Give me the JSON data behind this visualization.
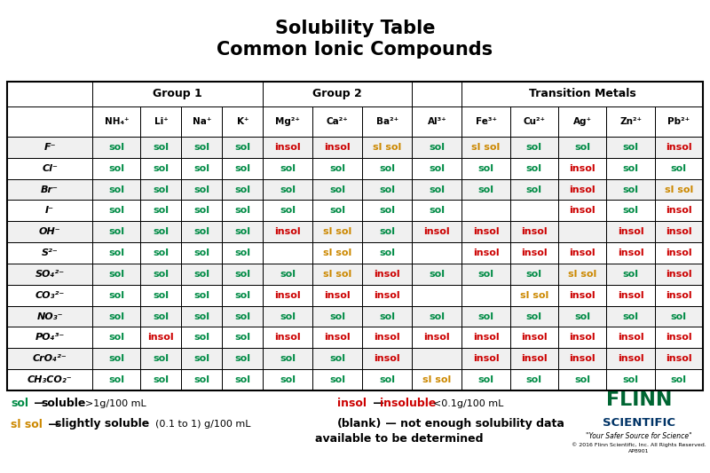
{
  "title_line1": "Solubility Table",
  "title_line2": "Common Ionic Compounds",
  "group_headers": [
    "Group 1",
    "Group 2",
    "Transition Metals"
  ],
  "col_headers": [
    "",
    "NH₄⁺",
    "Li⁺",
    "Na⁺",
    "K⁺",
    "Mg²⁺",
    "Ca²⁺",
    "Ba²⁺",
    "Al³⁺",
    "Fe³⁺",
    "Cu²⁺",
    "Ag⁺",
    "Zn²⁺",
    "Pb²⁺"
  ],
  "row_headers": [
    "F⁻",
    "Cl⁻",
    "Br⁻",
    "I⁻",
    "OH⁻",
    "S²⁻",
    "SO₄²⁻",
    "CO₃²⁻",
    "NO₃⁻",
    "PO₄³⁻",
    "CrO₄²⁻",
    "CH₃CO₂⁻"
  ],
  "table_data": [
    [
      "sol",
      "sol",
      "sol",
      "sol",
      "insol",
      "insol",
      "sl sol",
      "sol",
      "sl sol",
      "sol",
      "sol",
      "sol",
      "insol"
    ],
    [
      "sol",
      "sol",
      "sol",
      "sol",
      "sol",
      "sol",
      "sol",
      "sol",
      "sol",
      "sol",
      "insol",
      "sol",
      "sol"
    ],
    [
      "sol",
      "sol",
      "sol",
      "sol",
      "sol",
      "sol",
      "sol",
      "sol",
      "sol",
      "sol",
      "insol",
      "sol",
      "sl sol"
    ],
    [
      "sol",
      "sol",
      "sol",
      "sol",
      "sol",
      "sol",
      "sol",
      "sol",
      "",
      "",
      "insol",
      "sol",
      "insol"
    ],
    [
      "sol",
      "sol",
      "sol",
      "sol",
      "insol",
      "sl sol",
      "sol",
      "insol",
      "insol",
      "insol",
      "",
      "insol",
      "insol"
    ],
    [
      "sol",
      "sol",
      "sol",
      "sol",
      "",
      "sl sol",
      "sol",
      "",
      "insol",
      "insol",
      "insol",
      "insol",
      "insol"
    ],
    [
      "sol",
      "sol",
      "sol",
      "sol",
      "sol",
      "sl sol",
      "insol",
      "sol",
      "sol",
      "sol",
      "sl sol",
      "sol",
      "insol"
    ],
    [
      "sol",
      "sol",
      "sol",
      "sol",
      "insol",
      "insol",
      "insol",
      "",
      "",
      "sl sol",
      "insol",
      "insol",
      "insol"
    ],
    [
      "sol",
      "sol",
      "sol",
      "sol",
      "sol",
      "sol",
      "sol",
      "sol",
      "sol",
      "sol",
      "sol",
      "sol",
      "sol"
    ],
    [
      "sol",
      "insol",
      "sol",
      "sol",
      "insol",
      "insol",
      "insol",
      "insol",
      "insol",
      "insol",
      "insol",
      "insol",
      "insol"
    ],
    [
      "sol",
      "sol",
      "sol",
      "sol",
      "sol",
      "sol",
      "insol",
      "",
      "insol",
      "insol",
      "insol",
      "insol",
      "insol"
    ],
    [
      "sol",
      "sol",
      "sol",
      "sol",
      "sol",
      "sol",
      "sol",
      "sl sol",
      "sol",
      "sol",
      "sol",
      "sol",
      "sol"
    ]
  ],
  "color_sol": "#008B45",
  "color_insol": "#CC0000",
  "color_sl_sol": "#CC8800",
  "bg_color": "#ffffff",
  "flinn_color": "#006633",
  "scientific_color": "#003366",
  "row_alt_bg": "#f0f0f0",
  "row_bg": "#ffffff",
  "title_fontsize": 15,
  "group_fontsize": 9,
  "col_hdr_fontsize": 7.5,
  "cell_fontsize": 8,
  "row_hdr_fontsize": 8
}
